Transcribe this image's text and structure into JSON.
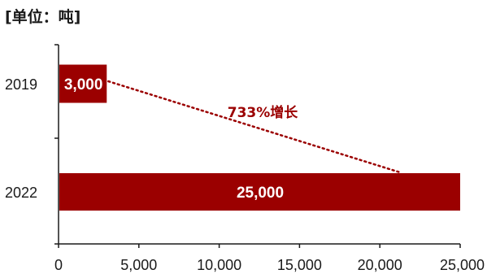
{
  "unit_label": "[单位：吨]",
  "colors": {
    "bar": "#9b0000",
    "annotation": "#9b0000",
    "axis": "#1a1a1a"
  },
  "chart_data": {
    "type": "bar",
    "orientation": "horizontal",
    "categories": [
      "2019",
      "2022"
    ],
    "values": [
      3000,
      25000
    ],
    "value_labels": [
      "3,000",
      "25,000"
    ],
    "xlim": [
      0,
      25000
    ],
    "xticks": [
      0,
      5000,
      10000,
      15000,
      20000,
      25000
    ],
    "xtick_labels": [
      "0",
      "5,000",
      "10,000",
      "15,000",
      "20,000",
      "25,000"
    ],
    "grid": false,
    "annotation": {
      "text": "733%增长",
      "style": "dotted-line",
      "from": "2019",
      "to": "2022"
    }
  }
}
